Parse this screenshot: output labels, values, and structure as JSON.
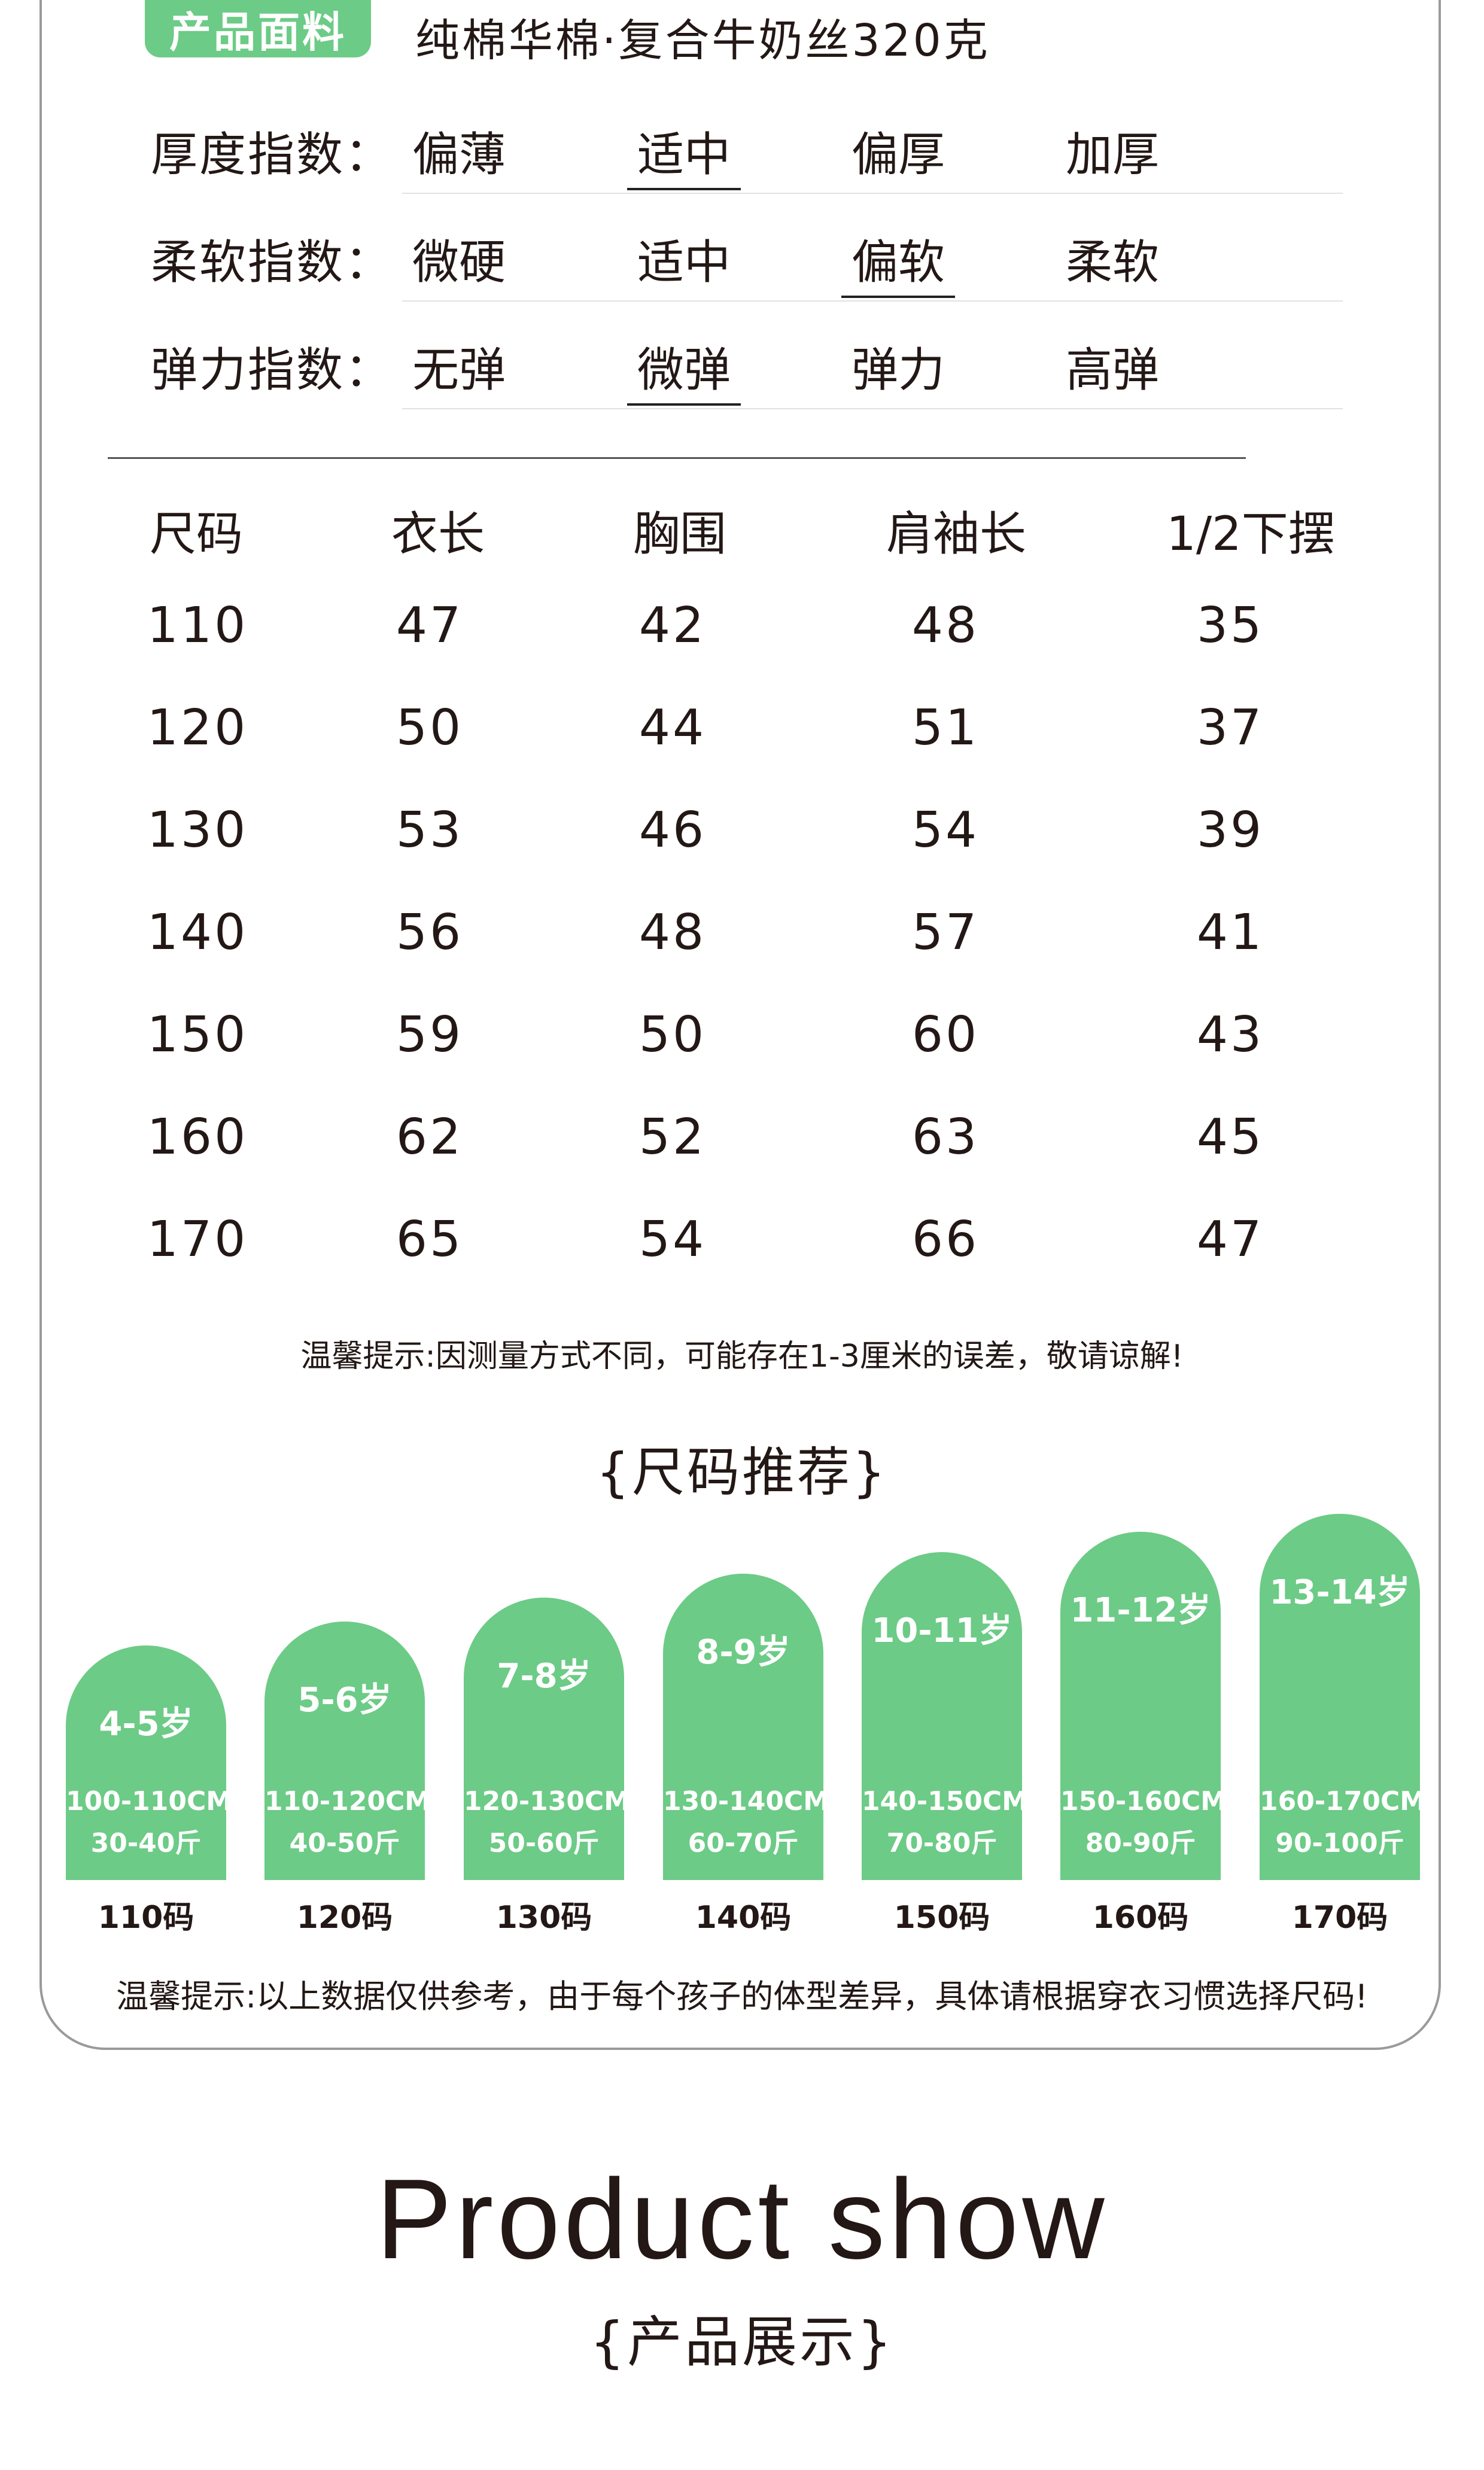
{
  "fabric": {
    "tag": "产品面料",
    "value": "纯棉华棉·复合牛奶丝320克"
  },
  "indices": [
    {
      "label": "厚度指数：",
      "options": [
        "偏薄",
        "适中",
        "偏厚",
        "加厚"
      ],
      "selected": 1
    },
    {
      "label": "柔软指数：",
      "options": [
        "微硬",
        "适中",
        "偏软",
        "柔软"
      ],
      "selected": 2
    },
    {
      "label": "弹力指数：",
      "options": [
        "无弹",
        "微弹",
        "弹力",
        "高弹"
      ],
      "selected": 1
    }
  ],
  "size_table": {
    "headers": [
      "尺码",
      "衣长",
      "胸围",
      "肩袖长",
      "1/2下摆"
    ],
    "rows": [
      [
        "110",
        "47",
        "42",
        "48",
        "35"
      ],
      [
        "120",
        "50",
        "44",
        "51",
        "37"
      ],
      [
        "130",
        "53",
        "46",
        "54",
        "39"
      ],
      [
        "140",
        "56",
        "48",
        "57",
        "41"
      ],
      [
        "150",
        "59",
        "50",
        "60",
        "43"
      ],
      [
        "160",
        "62",
        "52",
        "63",
        "45"
      ],
      [
        "170",
        "65",
        "54",
        "66",
        "47"
      ]
    ]
  },
  "tip_measure": "温馨提示:因测量方式不同，可能存在1-3厘米的误差，敬请谅解!",
  "recommend": {
    "title": "{尺码推荐}",
    "cards": [
      {
        "age": "4-5岁",
        "height": "100-110CM",
        "weight": "30-40斤",
        "code": "110码"
      },
      {
        "age": "5-6岁",
        "height": "110-120CM",
        "weight": "40-50斤",
        "code": "120码"
      },
      {
        "age": "7-8岁",
        "height": "120-130CM",
        "weight": "50-60斤",
        "code": "130码"
      },
      {
        "age": "8-9岁",
        "height": "130-140CM",
        "weight": "60-70斤",
        "code": "140码"
      },
      {
        "age": "10-11岁",
        "height": "140-150CM",
        "weight": "70-80斤",
        "code": "150码"
      },
      {
        "age": "11-12岁",
        "height": "150-160CM",
        "weight": "80-90斤",
        "code": "160码"
      },
      {
        "age": "13-14岁",
        "height": "160-170CM",
        "weight": "90-100斤",
        "code": "170码"
      }
    ]
  },
  "tip_reference": "温馨提示:以上数据仅供参考，由于每个孩子的体型差异，具体请根据穿衣习惯选择尺码!",
  "show": {
    "title": "Product show",
    "subtitle": "{产品展示}"
  },
  "colors": {
    "accent": "#6ccb86",
    "text": "#231815"
  }
}
